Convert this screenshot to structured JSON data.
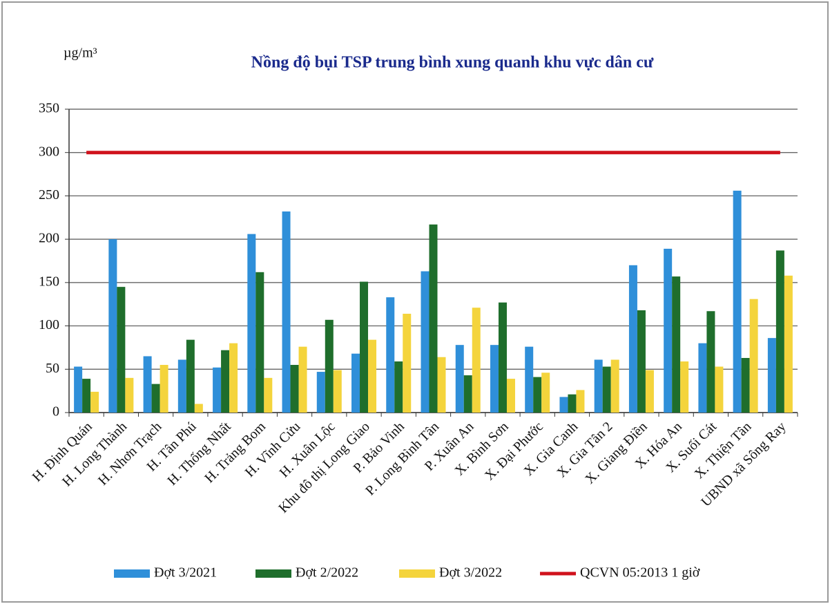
{
  "chart_data": {
    "type": "bar",
    "title": "Nồng độ bụi TSP trung bình xung quanh khu vực dân cư",
    "y_label": "µg/m³",
    "categories": [
      "H. Định Quán",
      "H. Long Thành",
      "H. Nhơn Trạch",
      "H. Tân Phú",
      "H. Thống Nhất",
      "H. Trảng Bom",
      "H. Vĩnh Cửu",
      "H. Xuân Lộc",
      "Khu đô thị Long Giao",
      "P. Bảo Vinh",
      "P. Long Bình Tân",
      "P. Xuân An",
      "X. Bình Sơn",
      "X. Đại Phước",
      "X. Gia Canh",
      "X. Gia Tân 2",
      "X. Giang Điền",
      "X. Hóa An",
      "X. Suối Cát",
      "X. Thiện Tân",
      "UBND xã Sông Ray"
    ],
    "series": [
      {
        "name": "Đợt 3/2021",
        "color": "#2f8fd9",
        "values": [
          53,
          200,
          65,
          61,
          52,
          206,
          232,
          47,
          68,
          133,
          163,
          78,
          78,
          76,
          18,
          61,
          170,
          189,
          80,
          256,
          86
        ]
      },
      {
        "name": "Đợt 2/2022",
        "color": "#1f6e2c",
        "values": [
          39,
          145,
          33,
          84,
          72,
          162,
          55,
          107,
          151,
          59,
          217,
          43,
          127,
          41,
          21,
          53,
          118,
          157,
          117,
          63,
          187
        ]
      },
      {
        "name": "Đợt 3/2022",
        "color": "#f4d43c",
        "values": [
          24,
          40,
          55,
          10,
          80,
          40,
          76,
          49,
          84,
          114,
          64,
          121,
          39,
          46,
          26,
          61,
          49,
          59,
          53,
          131,
          158
        ]
      },
      {
        "name": "QCVN 05:2013 1 giờ",
        "color": "#d0121c",
        "type": "line",
        "values": [
          300,
          300,
          300,
          300,
          300,
          300,
          300,
          300,
          300,
          300,
          300,
          300,
          300,
          300,
          300,
          300,
          300,
          300,
          300,
          300,
          300
        ]
      }
    ],
    "ylim": [
      0,
      350
    ],
    "yticks": [
      0,
      50,
      100,
      150,
      200,
      250,
      300,
      350
    ],
    "grid": true,
    "legend": "bottom"
  }
}
